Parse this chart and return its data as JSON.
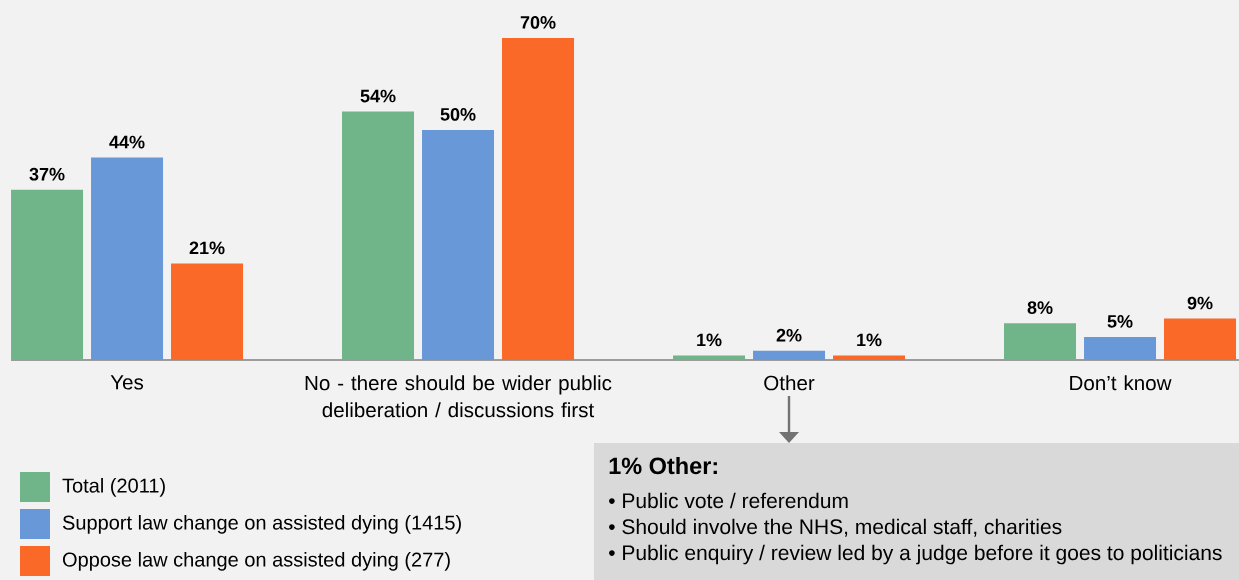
{
  "chart_data": {
    "type": "bar",
    "categories": [
      "Yes",
      "No - there should be wider public deliberation / discussions first",
      "Other",
      "Don’t know"
    ],
    "series": [
      {
        "name": "Total (2011)",
        "color": "#70b48a",
        "values": [
          37,
          54,
          1,
          8
        ],
        "value_labels": [
          "37%",
          "54%",
          "1%",
          "8%"
        ]
      },
      {
        "name": "Support law change on assisted dying (1415)",
        "color": "#6898d8",
        "values": [
          44,
          50,
          2,
          5
        ],
        "value_labels": [
          "44%",
          "50%",
          "2%",
          "5%"
        ]
      },
      {
        "name": "Oppose law change on assisted dying (277)",
        "color": "#fa6928",
        "values": [
          21,
          70,
          1,
          9
        ],
        "value_labels": [
          "21%",
          "70%",
          "1%",
          "9%"
        ]
      }
    ],
    "legend": "bottom left",
    "tick_labels": "x",
    "annotations": [
      "1% Other:",
      "• Public vote / referendum",
      "• Should involve the NHS, medical staff, charities",
      "• Public enquiry / review led by a judge before it goes to politicians"
    ]
  }
}
